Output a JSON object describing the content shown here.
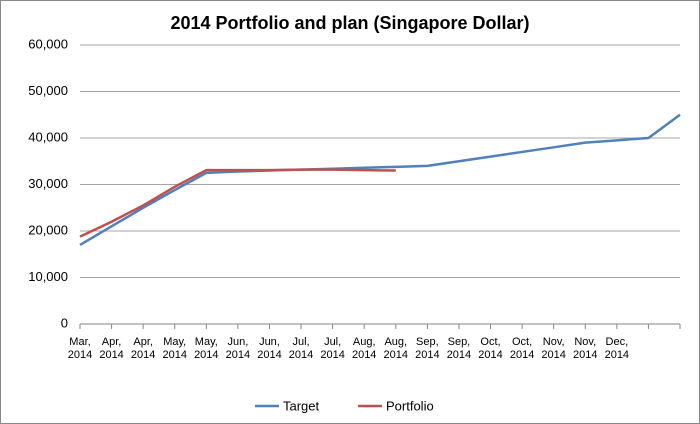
{
  "chart_data": {
    "type": "line",
    "title": "2014 Portfolio and plan  (Singapore Dollar)",
    "categories": [
      "Mar, 2014",
      "Apr, 2014",
      "Apr, 2014",
      "May, 2014",
      "May, 2014",
      "Jun, 2014",
      "Jun, 2014",
      "Jul, 2014",
      "Jul, 2014",
      "Aug, 2014",
      "Aug, 2014",
      "Sep, 2014",
      "Sep, 2014",
      "Oct, 2014",
      "Oct, 2014",
      "Nov, 2014",
      "Nov, 2014",
      "Dec, 2014",
      null,
      null
    ],
    "series": [
      {
        "name": "Target",
        "color": "#4f81bd",
        "values": [
          17000,
          21000,
          25000,
          28800,
          32500,
          32800,
          33000,
          33200,
          33400,
          33600,
          33800,
          34000,
          35000,
          36000,
          37000,
          38000,
          39000,
          39500,
          40000,
          45000
        ]
      },
      {
        "name": "Portfolio",
        "color": "#c0504d",
        "values": [
          18800,
          22000,
          25500,
          29500,
          33100,
          33100,
          33100,
          33200,
          33200,
          33100,
          33000,
          null,
          null,
          null,
          null,
          null,
          null,
          null,
          null,
          null
        ]
      }
    ],
    "ylim": [
      0,
      60000
    ],
    "yticks": [
      0,
      {
        "value": 10000,
        "label": "10,000"
      },
      {
        "value": 20000,
        "label": "20,000"
      },
      {
        "value": 30000,
        "label": "30,000"
      },
      {
        "value": 40000,
        "label": "40,000"
      },
      {
        "value": 50000,
        "label": "50,000"
      },
      {
        "value": 60000,
        "label": "60,000"
      }
    ],
    "grid": true,
    "legend": "bottom"
  }
}
